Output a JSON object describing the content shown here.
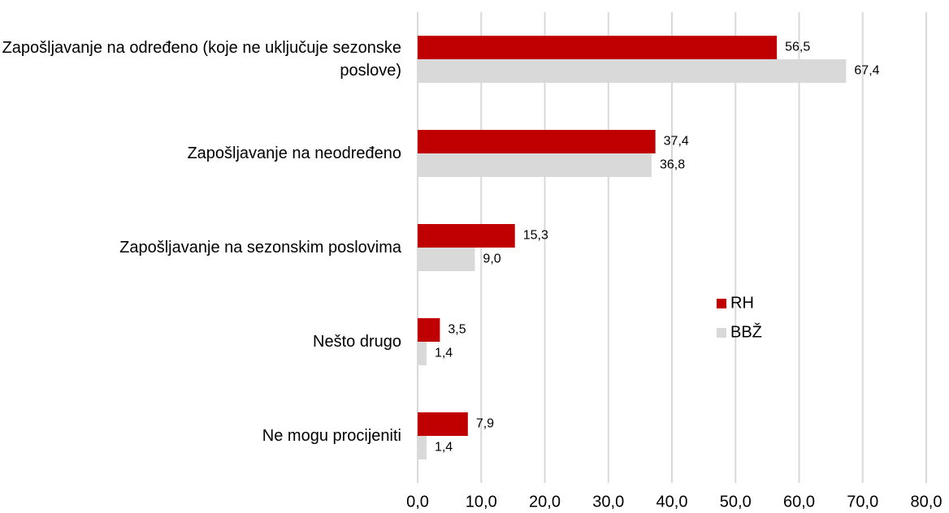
{
  "chart_data": {
    "type": "barh",
    "categories": [
      "Zapošljavanje na određeno (koje ne uključuje sezonske poslove)",
      "Zapošljavanje na neodređeno",
      "Zapošljavanje na sezonskim poslovima",
      "Nešto drugo",
      "Ne mogu procijeniti"
    ],
    "series": [
      {
        "name": "RH",
        "color": "#c00000",
        "values": [
          56.5,
          37.4,
          15.3,
          3.5,
          7.9
        ],
        "value_labels": [
          "56,5",
          "37,4",
          "15,3",
          "3,5",
          "7,9"
        ]
      },
      {
        "name": "BBŽ",
        "color": "#d9d9d9",
        "values": [
          67.4,
          36.8,
          9.0,
          1.4,
          1.4
        ],
        "value_labels": [
          "67,4",
          "36,8",
          "9,0",
          "1,4",
          "1,4"
        ]
      }
    ],
    "xlim": [
      0,
      80
    ],
    "xticks": [
      {
        "value": 0,
        "label": "0,0"
      },
      {
        "value": 10,
        "label": "10,0"
      },
      {
        "value": 20,
        "label": "20,0"
      },
      {
        "value": 30,
        "label": "30,0"
      },
      {
        "value": 40,
        "label": "40,0"
      },
      {
        "value": 50,
        "label": "50,0"
      },
      {
        "value": 60,
        "label": "60,0"
      },
      {
        "value": 70,
        "label": "70,0"
      },
      {
        "value": 80,
        "label": "80,0"
      }
    ],
    "grid": true
  }
}
